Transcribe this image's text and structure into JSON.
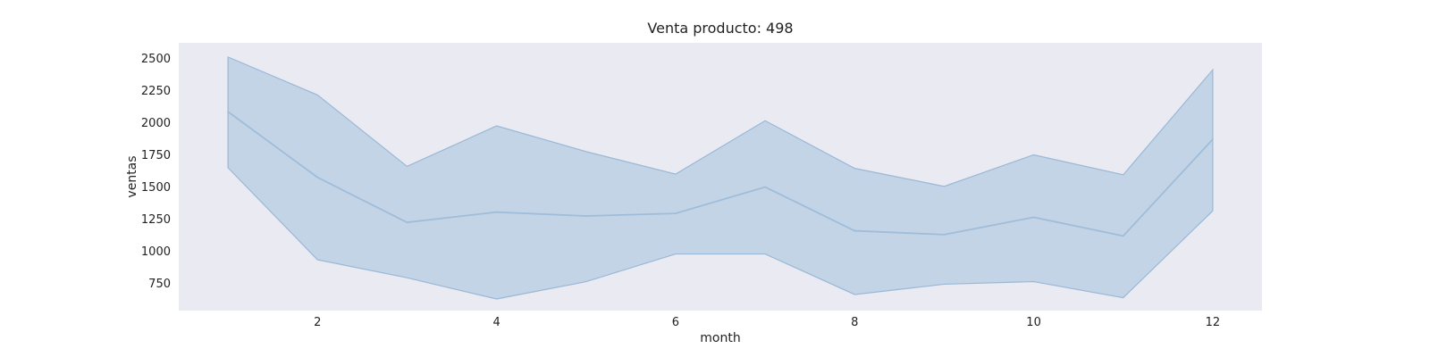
{
  "chart_data": {
    "type": "area",
    "title": "Venta producto: 498",
    "xlabel": "month",
    "ylabel": "ventas",
    "x": [
      1,
      2,
      3,
      4,
      5,
      6,
      7,
      8,
      9,
      10,
      11,
      12
    ],
    "series": [
      {
        "values": [
          2085,
          1575,
          1225,
          1305,
          1275,
          1295,
          1500,
          1160,
          1130,
          1265,
          1120,
          1870
        ],
        "upper": [
          2510,
          2215,
          1660,
          1975,
          1775,
          1600,
          2015,
          1645,
          1505,
          1750,
          1595,
          2410
        ],
        "lower": [
          1650,
          935,
          795,
          630,
          765,
          980,
          980,
          665,
          745,
          765,
          640,
          1315
        ]
      }
    ],
    "xticks": [
      2,
      4,
      6,
      8,
      10,
      12
    ],
    "yticks": [
      750,
      1000,
      1250,
      1500,
      1750,
      2000,
      2250,
      2500
    ],
    "xlim": [
      0.45,
      12.55
    ],
    "ylim": [
      540,
      2620
    ],
    "grid": false,
    "colors": {
      "plot_background": "#eaeaf2",
      "band_fill": "#a9c4df",
      "band_edge": "#9ab8d6",
      "line": "#9fbdd8"
    }
  }
}
